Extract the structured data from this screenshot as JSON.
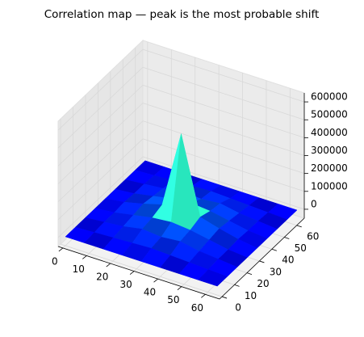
{
  "chart_data": {
    "type": "surface",
    "title": "Correlation map — peak is the most probable shift",
    "x": [
      0,
      8,
      16,
      24,
      32,
      40,
      48,
      56,
      64
    ],
    "y": [
      0,
      8,
      16,
      24,
      32,
      40,
      48,
      56,
      64
    ],
    "z": [
      [
        0,
        0,
        0,
        0,
        0,
        0,
        0,
        0,
        0
      ],
      [
        0,
        5000,
        10000,
        15000,
        20000,
        15000,
        10000,
        5000,
        0
      ],
      [
        0,
        10000,
        20000,
        40000,
        30000,
        40000,
        20000,
        10000,
        0
      ],
      [
        0,
        10000,
        30000,
        50000,
        60000,
        50000,
        30000,
        10000,
        0
      ],
      [
        0,
        15000,
        40000,
        70000,
        500000,
        70000,
        40000,
        15000,
        0
      ],
      [
        0,
        10000,
        30000,
        50000,
        60000,
        50000,
        30000,
        10000,
        0
      ],
      [
        0,
        10000,
        20000,
        40000,
        30000,
        40000,
        20000,
        10000,
        0
      ],
      [
        0,
        5000,
        10000,
        15000,
        20000,
        15000,
        10000,
        5000,
        0
      ],
      [
        0,
        0,
        0,
        0,
        0,
        0,
        0,
        0,
        0
      ]
    ],
    "colormap": "jet",
    "xlim": [
      -2,
      66
    ],
    "ylim": [
      -2,
      66
    ],
    "zlim": [
      -50000,
      650000
    ],
    "xticks": [
      0,
      10,
      20,
      30,
      40,
      50,
      60
    ],
    "yticks": [
      0,
      10,
      20,
      30,
      40,
      50,
      60
    ],
    "zticks": [
      0,
      100000,
      200000,
      300000,
      400000,
      500000,
      600000
    ],
    "grid": true
  }
}
